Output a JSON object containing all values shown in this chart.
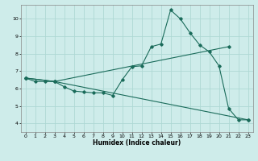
{
  "xlabel": "Humidex (Indice chaleur)",
  "xlim": [
    -0.5,
    23.5
  ],
  "ylim": [
    3.5,
    10.8
  ],
  "xticks": [
    0,
    1,
    2,
    3,
    4,
    5,
    6,
    7,
    8,
    9,
    10,
    11,
    12,
    13,
    14,
    15,
    16,
    17,
    18,
    19,
    20,
    21,
    22,
    23
  ],
  "yticks": [
    4,
    5,
    6,
    7,
    8,
    9,
    10
  ],
  "background_color": "#ceecea",
  "grid_color": "#aed8d4",
  "line_color": "#1a6b5a",
  "line1_x": [
    0,
    1,
    2,
    3,
    4,
    5,
    6,
    7,
    8,
    9,
    10,
    11,
    12,
    13,
    14,
    15,
    16,
    17,
    18,
    19,
    20,
    21,
    22,
    23
  ],
  "line1_y": [
    6.6,
    6.4,
    6.4,
    6.4,
    6.1,
    5.85,
    5.8,
    5.75,
    5.75,
    5.6,
    6.5,
    7.25,
    7.3,
    8.4,
    8.55,
    10.5,
    10.0,
    9.2,
    8.5,
    8.1,
    7.3,
    4.85,
    4.2,
    4.2
  ],
  "line2_x": [
    0,
    3,
    21
  ],
  "line2_y": [
    6.6,
    6.4,
    8.4
  ],
  "line3_x": [
    0,
    3,
    23
  ],
  "line3_y": [
    6.6,
    6.4,
    4.2
  ]
}
